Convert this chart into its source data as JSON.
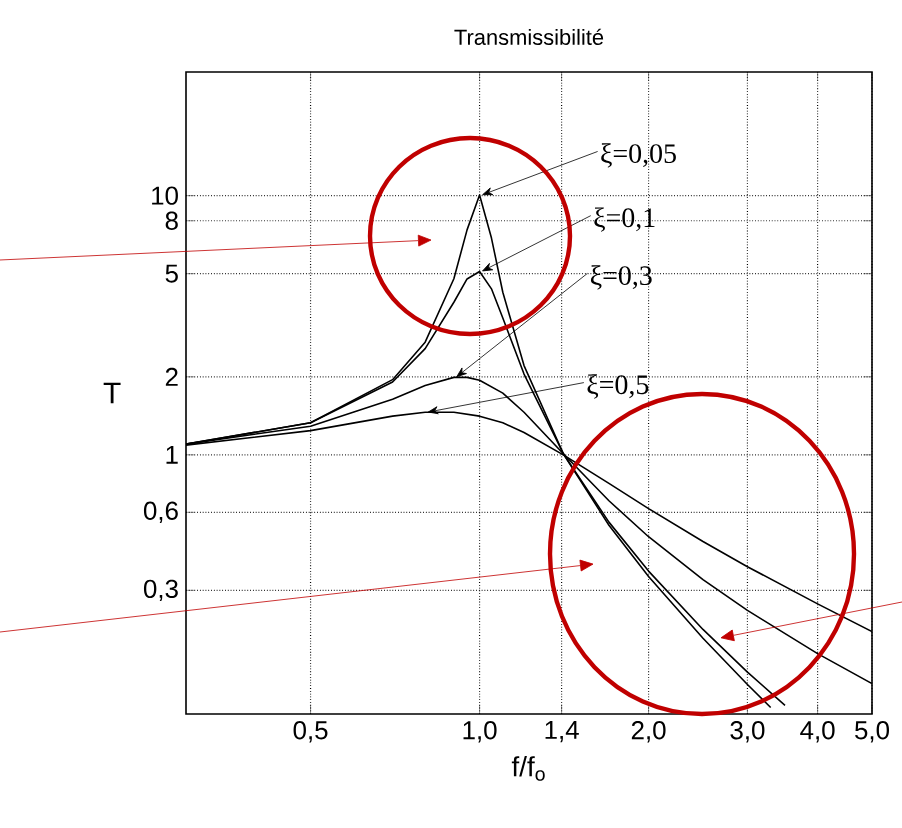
{
  "chart_data": {
    "type": "line",
    "title": "Transmissibilité",
    "xlabel": "f/f$_{o}$",
    "ylabel": "T",
    "log": "xy",
    "grid": true,
    "xlim": [
      0.3,
      5
    ],
    "ylim": [
      0.1,
      30
    ],
    "xticks": [
      {
        "value": 0.5,
        "label": "0,5"
      },
      {
        "value": 1.0,
        "label": "1,0"
      },
      {
        "value": 1.4,
        "label": "1,4"
      },
      {
        "value": 2.0,
        "label": "2,0"
      },
      {
        "value": 3.0,
        "label": "3,0"
      },
      {
        "value": 4.0,
        "label": "4,0"
      },
      {
        "value": 5.0,
        "label": "5,0"
      }
    ],
    "yticks": [
      {
        "value": 0.3,
        "label": "0,3"
      },
      {
        "value": 0.6,
        "label": "0,6"
      },
      1,
      2,
      5,
      8,
      10
    ],
    "series": [
      {
        "name": "ξ=0,05",
        "color": "#000000",
        "x": [
          0.3,
          0.5,
          0.7,
          0.8,
          0.9,
          0.95,
          1.0,
          1.05,
          1.1,
          1.2,
          1.41,
          1.7,
          2.0,
          2.5,
          3.0,
          3.3
        ],
        "values": [
          1.1,
          1.33,
          1.95,
          2.72,
          4.78,
          7.38,
          10.05,
          6.86,
          4.24,
          2.21,
          1.01,
          0.535,
          0.339,
          0.196,
          0.13,
          0.106
        ]
      },
      {
        "name": "ξ=0,1",
        "color": "#000000",
        "x": [
          0.3,
          0.5,
          0.7,
          0.8,
          0.9,
          0.95,
          1.0,
          1.05,
          1.1,
          1.2,
          1.41,
          1.7,
          2.0,
          2.5,
          3.0,
          3.5
        ],
        "values": [
          1.1,
          1.33,
          1.91,
          2.57,
          3.88,
          4.77,
          5.1,
          4.37,
          3.37,
          2.05,
          1.01,
          0.55,
          0.356,
          0.212,
          0.145,
          0.108
        ]
      },
      {
        "name": "ξ=0,3",
        "color": "#000000",
        "x": [
          0.3,
          0.5,
          0.7,
          0.8,
          0.9,
          0.95,
          1.0,
          1.1,
          1.2,
          1.41,
          1.7,
          2.0,
          2.5,
          3.0,
          4.0,
          5.0
        ],
        "values": [
          1.1,
          1.29,
          1.64,
          1.85,
          1.99,
          1.99,
          1.94,
          1.73,
          1.46,
          1.01,
          0.665,
          0.483,
          0.33,
          0.251,
          0.171,
          0.131
        ]
      },
      {
        "name": "ξ=0,5",
        "color": "#000000",
        "x": [
          0.3,
          0.5,
          0.7,
          0.8,
          0.9,
          1.0,
          1.1,
          1.2,
          1.41,
          1.7,
          2.0,
          2.5,
          3.0,
          4.0,
          5.0
        ],
        "values": [
          1.09,
          1.24,
          1.41,
          1.46,
          1.46,
          1.41,
          1.33,
          1.22,
          1.0,
          0.776,
          0.62,
          0.463,
          0.37,
          0.266,
          0.208
        ]
      }
    ]
  }
}
